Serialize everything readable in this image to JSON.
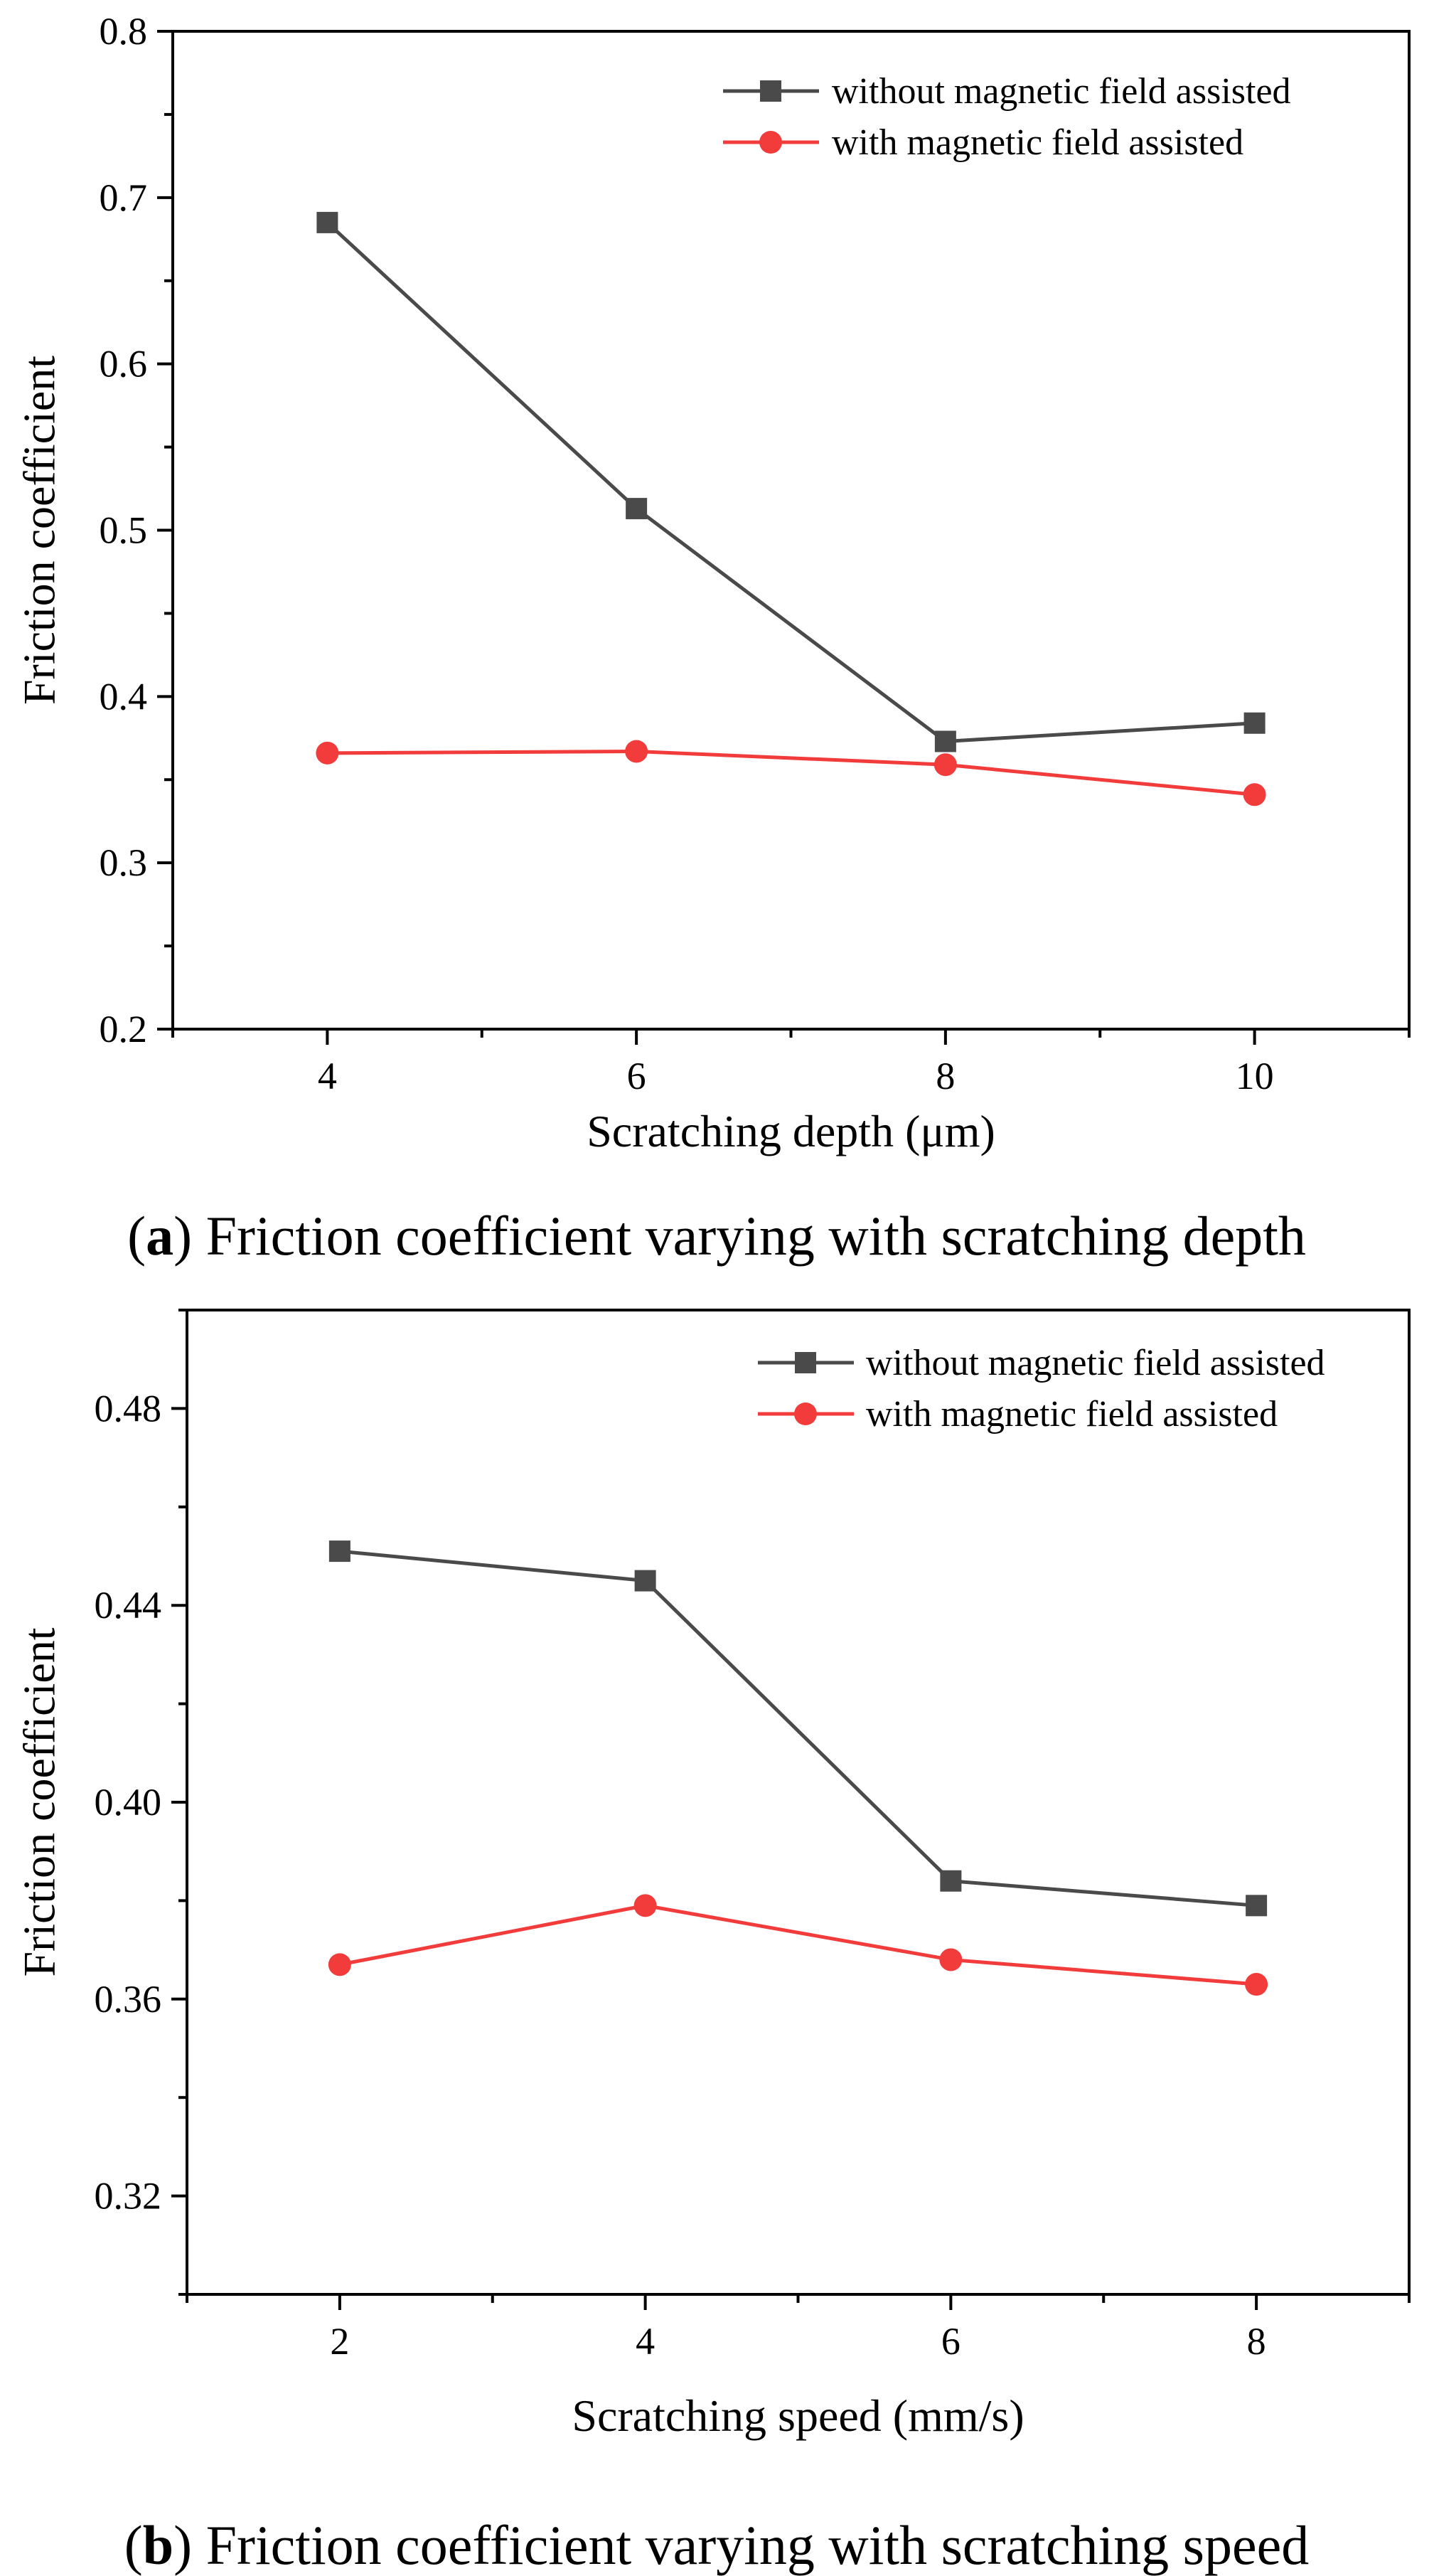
{
  "colors": {
    "series_without": "#4a4a4a",
    "series_with": "#f23c3c",
    "axis": "#000000",
    "background": "#ffffff"
  },
  "chart_data": [
    {
      "type": "line",
      "ylabel": "Friction coefficient",
      "xlabel": "Scratching depth (μm)",
      "caption_letter": "a",
      "caption_text": "Friction coefficient varying with scratching depth",
      "x": [
        4,
        6,
        8,
        10
      ],
      "xlim": [
        3,
        11
      ],
      "ylim": [
        0.2,
        0.8
      ],
      "xticks": [
        4,
        6,
        8,
        10
      ],
      "xtick_labels": [
        "4",
        "6",
        "8",
        "10"
      ],
      "xminor": [
        3,
        5,
        7,
        9,
        11
      ],
      "yticks": [
        0.2,
        0.3,
        0.4,
        0.5,
        0.6,
        0.7,
        0.8
      ],
      "ytick_labels": [
        "0.2",
        "0.3",
        "0.4",
        "0.5",
        "0.6",
        "0.7",
        "0.8"
      ],
      "yminor": [
        0.25,
        0.35,
        0.45,
        0.55,
        0.65,
        0.75
      ],
      "legend_position": "top-right",
      "series": [
        {
          "name": "without magnetic field assisted",
          "marker": "square",
          "color_key": "series_without",
          "values": [
            0.685,
            0.513,
            0.373,
            0.384
          ]
        },
        {
          "name": "with magnetic field assisted",
          "marker": "circle",
          "color_key": "series_with",
          "values": [
            0.366,
            0.367,
            0.359,
            0.341
          ]
        }
      ]
    },
    {
      "type": "line",
      "ylabel": "Friction coefficient",
      "xlabel": "Scratching speed (mm/s)",
      "caption_letter": "b",
      "caption_text": "Friction coefficient varying with scratching speed",
      "x": [
        2,
        4,
        6,
        8
      ],
      "xlim": [
        1,
        9
      ],
      "ylim": [
        0.3,
        0.5
      ],
      "xticks": [
        2,
        4,
        6,
        8
      ],
      "xtick_labels": [
        "2",
        "4",
        "6",
        "8"
      ],
      "xminor": [
        1,
        3,
        5,
        7,
        9
      ],
      "yticks": [
        0.32,
        0.36,
        0.4,
        0.44,
        0.48
      ],
      "ytick_labels": [
        "0.32",
        "0.36",
        "0.40",
        "0.44",
        "0.48"
      ],
      "yminor": [
        0.3,
        0.34,
        0.38,
        0.42,
        0.46,
        0.5
      ],
      "legend_position": "top-right",
      "series": [
        {
          "name": "without magnetic field assisted",
          "marker": "square",
          "color_key": "series_without",
          "values": [
            0.451,
            0.445,
            0.384,
            0.379
          ]
        },
        {
          "name": "with magnetic field assisted",
          "marker": "circle",
          "color_key": "series_with",
          "values": [
            0.367,
            0.379,
            0.368,
            0.363
          ]
        }
      ]
    }
  ]
}
